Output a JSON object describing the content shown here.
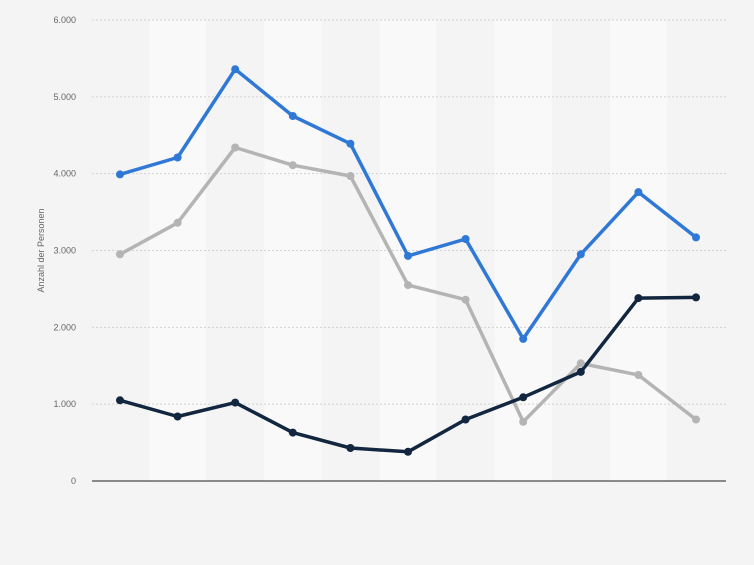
{
  "chart_data": {
    "type": "line",
    "title": "",
    "xlabel": "",
    "ylabel": "Anzahl der Personen",
    "ylim": [
      0,
      6000
    ],
    "yticks": [
      {
        "value": 0,
        "label": "0"
      },
      {
        "value": 1000,
        "label": "1.000"
      },
      {
        "value": 2000,
        "label": "2.000"
      },
      {
        "value": 3000,
        "label": "3.000"
      },
      {
        "value": 4000,
        "label": "4.000"
      },
      {
        "value": 5000,
        "label": "5.000"
      },
      {
        "value": 6000,
        "label": "6.000"
      }
    ],
    "grid": true,
    "point_count": 11,
    "series": [
      {
        "color": "#2f78d6",
        "values": [
          3990,
          4210,
          5360,
          4750,
          4390,
          2930,
          3150,
          1850,
          2950,
          3760,
          3170
        ]
      },
      {
        "color": "#b4b4b4",
        "values": [
          2950,
          3360,
          4340,
          4110,
          3970,
          2550,
          2360,
          770,
          1530,
          1380,
          800
        ]
      },
      {
        "color": "#12263f",
        "values": [
          1050,
          840,
          1020,
          630,
          430,
          380,
          800,
          1090,
          1420,
          2380,
          2390
        ]
      }
    ]
  },
  "colors": {
    "background": "#f4f4f4",
    "band": "#f9f9f9",
    "grid": "#d2d2d2",
    "axis": "#1e1e1e",
    "text": "#666666"
  }
}
